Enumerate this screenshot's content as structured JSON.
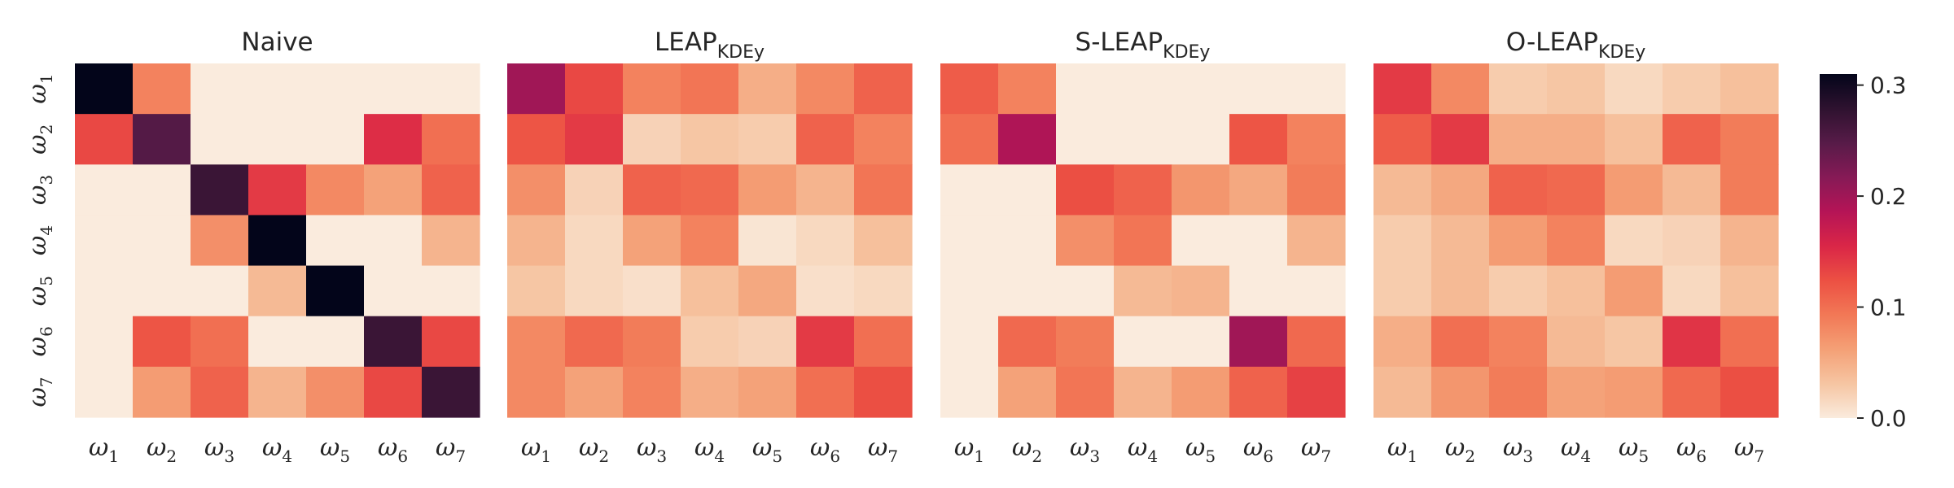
{
  "chart_data": [
    {
      "type": "heatmap",
      "title": "Naive",
      "title_sub": "",
      "rows": [
        "ω1",
        "ω2",
        "ω3",
        "ω4",
        "ω5",
        "ω6",
        "ω7"
      ],
      "cols": [
        "ω1",
        "ω2",
        "ω3",
        "ω4",
        "ω5",
        "ω6",
        "ω7"
      ],
      "values": [
        [
          0.31,
          0.085,
          0.0,
          0.0,
          0.0,
          0.0,
          0.0
        ],
        [
          0.13,
          0.25,
          0.0,
          0.0,
          0.0,
          0.15,
          0.1
        ],
        [
          0.0,
          0.0,
          0.27,
          0.14,
          0.08,
          0.06,
          0.11
        ],
        [
          0.0,
          0.0,
          0.075,
          0.31,
          0.0,
          0.0,
          0.045
        ],
        [
          0.0,
          0.0,
          0.0,
          0.04,
          0.32,
          0.0,
          0.0
        ],
        [
          0.0,
          0.12,
          0.1,
          0.0,
          0.0,
          0.27,
          0.13
        ],
        [
          0.0,
          0.065,
          0.11,
          0.045,
          0.075,
          0.13,
          0.27
        ]
      ]
    },
    {
      "type": "heatmap",
      "title": "LEAP",
      "title_sub": "KDEy",
      "rows": [
        "ω1",
        "ω2",
        "ω3",
        "ω4",
        "ω5",
        "ω6",
        "ω7"
      ],
      "cols": [
        "ω1",
        "ω2",
        "ω3",
        "ω4",
        "ω5",
        "ω6",
        "ω7"
      ],
      "values": [
        [
          0.2,
          0.13,
          0.085,
          0.095,
          0.05,
          0.08,
          0.11
        ],
        [
          0.12,
          0.14,
          0.02,
          0.03,
          0.025,
          0.11,
          0.085
        ],
        [
          0.075,
          0.02,
          0.11,
          0.105,
          0.065,
          0.045,
          0.095
        ],
        [
          0.045,
          0.015,
          0.06,
          0.085,
          0.005,
          0.015,
          0.035
        ],
        [
          0.03,
          0.015,
          0.01,
          0.035,
          0.055,
          0.01,
          0.015
        ],
        [
          0.08,
          0.105,
          0.09,
          0.025,
          0.02,
          0.14,
          0.1
        ],
        [
          0.08,
          0.06,
          0.085,
          0.05,
          0.06,
          0.1,
          0.125
        ]
      ]
    },
    {
      "type": "heatmap",
      "title": "S-LEAP",
      "title_sub": "KDEy",
      "rows": [
        "ω1",
        "ω2",
        "ω3",
        "ω4",
        "ω5",
        "ω6",
        "ω7"
      ],
      "cols": [
        "ω1",
        "ω2",
        "ω3",
        "ω4",
        "ω5",
        "ω6",
        "ω7"
      ],
      "values": [
        [
          0.115,
          0.085,
          0.0,
          0.0,
          0.0,
          0.0,
          0.0
        ],
        [
          0.1,
          0.19,
          0.0,
          0.0,
          0.0,
          0.12,
          0.085
        ],
        [
          0.0,
          0.0,
          0.125,
          0.11,
          0.07,
          0.055,
          0.09
        ],
        [
          0.0,
          0.0,
          0.075,
          0.095,
          0.0,
          0.0,
          0.045
        ],
        [
          0.0,
          0.0,
          0.0,
          0.04,
          0.045,
          0.0,
          0.0
        ],
        [
          0.0,
          0.105,
          0.09,
          0.0,
          0.0,
          0.2,
          0.105
        ],
        [
          0.0,
          0.06,
          0.095,
          0.045,
          0.065,
          0.11,
          0.135
        ]
      ]
    },
    {
      "type": "heatmap",
      "title": "O-LEAP",
      "title_sub": "KDEy",
      "rows": [
        "ω1",
        "ω2",
        "ω3",
        "ω4",
        "ω5",
        "ω6",
        "ω7"
      ],
      "cols": [
        "ω1",
        "ω2",
        "ω3",
        "ω4",
        "ω5",
        "ω6",
        "ω7"
      ],
      "values": [
        [
          0.14,
          0.08,
          0.025,
          0.03,
          0.015,
          0.025,
          0.035
        ],
        [
          0.115,
          0.14,
          0.05,
          0.05,
          0.035,
          0.11,
          0.09
        ],
        [
          0.04,
          0.055,
          0.11,
          0.105,
          0.065,
          0.04,
          0.09
        ],
        [
          0.025,
          0.04,
          0.065,
          0.085,
          0.015,
          0.02,
          0.045
        ],
        [
          0.025,
          0.04,
          0.025,
          0.035,
          0.065,
          0.015,
          0.035
        ],
        [
          0.05,
          0.1,
          0.085,
          0.04,
          0.03,
          0.145,
          0.1
        ],
        [
          0.04,
          0.07,
          0.09,
          0.06,
          0.065,
          0.105,
          0.125
        ]
      ]
    }
  ],
  "colorbar": {
    "min": 0.0,
    "max": 0.31,
    "ticks": [
      0.0,
      0.1,
      0.2,
      0.3
    ],
    "tick_labels": [
      "0.0",
      "0.1",
      "0.2",
      "0.3"
    ]
  },
  "colormap": "rocket_r"
}
